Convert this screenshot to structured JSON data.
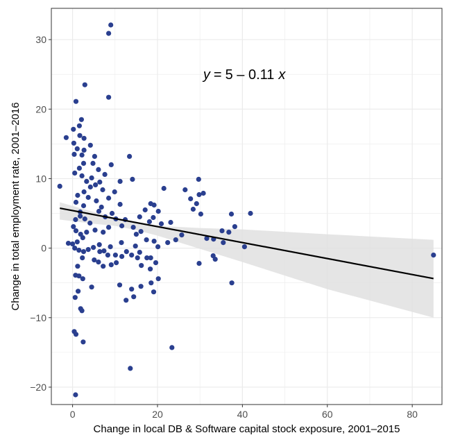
{
  "chart_data": {
    "type": "scatter",
    "xlabel": "Change in local DB & Software capital stock exposure, 2001–2015",
    "ylabel": "Change in total employment rate, 2001–2016",
    "xlim": [
      -5,
      87
    ],
    "ylim": [
      -22.5,
      34.5
    ],
    "x_ticks": [
      0,
      20,
      40,
      60,
      80
    ],
    "y_ticks": [
      -20,
      -10,
      0,
      10,
      20,
      30
    ],
    "grid": true,
    "annotation": {
      "y_var": "y",
      "equals": "=",
      "formula": "5 – 0.11",
      "x_var": "x",
      "x": 30,
      "y": 25
    },
    "fit_line": {
      "intercept": 5.4,
      "slope": -0.115,
      "x_range": [
        -3,
        85
      ]
    },
    "confidence_band": [
      {
        "x": -3,
        "upper": 6.6,
        "lower": 4.1
      },
      {
        "x": 5,
        "upper": 5.2,
        "lower": 3.5
      },
      {
        "x": 10,
        "upper": 4.4,
        "lower": 3.2
      },
      {
        "x": 15,
        "upper": 3.7,
        "lower": 2.6
      },
      {
        "x": 20,
        "upper": 3.2,
        "lower": 1.8
      },
      {
        "x": 30,
        "upper": 2.9,
        "lower": -0.1
      },
      {
        "x": 40,
        "upper": 2.7,
        "lower": -2.0
      },
      {
        "x": 60,
        "upper": 2.0,
        "lower": -5.9
      },
      {
        "x": 85,
        "upper": 1.2,
        "lower": -10.0
      }
    ],
    "colors": {
      "points": "#2a3f8f",
      "line": "#000000",
      "band": "#e0e0e0",
      "grid": "#ebebeb",
      "panel_border": "#333333"
    },
    "points": [
      [
        9,
        32.1
      ],
      [
        8.5,
        30.9
      ],
      [
        2.9,
        23.5
      ],
      [
        8.5,
        21.7
      ],
      [
        0.8,
        21.1
      ],
      [
        -3,
        8.9
      ],
      [
        -1.5,
        15.9
      ],
      [
        0.2,
        17.1
      ],
      [
        1.7,
        16.2
      ],
      [
        2.1,
        18.5
      ],
      [
        1.6,
        17.6
      ],
      [
        2.7,
        15.8
      ],
      [
        0.3,
        15.1
      ],
      [
        1.1,
        14.3
      ],
      [
        2.7,
        14.1
      ],
      [
        0.4,
        13.5
      ],
      [
        2.2,
        13.4
      ],
      [
        4.2,
        14.8
      ],
      [
        5.2,
        13.2
      ],
      [
        4.8,
        12.2
      ],
      [
        2.6,
        12.2
      ],
      [
        1.6,
        11.5
      ],
      [
        0.5,
        10.8
      ],
      [
        2.2,
        10.4
      ],
      [
        3.3,
        9.6
      ],
      [
        4.5,
        10.1
      ],
      [
        6.1,
        11.3
      ],
      [
        7.6,
        10.6
      ],
      [
        9.1,
        12.0
      ],
      [
        13.4,
        13.2
      ],
      [
        14.1,
        9.9
      ],
      [
        11.2,
        9.6
      ],
      [
        6.4,
        9.5
      ],
      [
        5.4,
        9.1
      ],
      [
        4.2,
        8.8
      ],
      [
        2.7,
        8.1
      ],
      [
        1.2,
        7.6
      ],
      [
        0.8,
        6.6
      ],
      [
        1.8,
        5.2
      ],
      [
        2.6,
        6.1
      ],
      [
        3.7,
        7.3
      ],
      [
        5.6,
        6.8
      ],
      [
        7.1,
        8.4
      ],
      [
        8.5,
        7.2
      ],
      [
        9.9,
        8.1
      ],
      [
        11.2,
        6.3
      ],
      [
        6.8,
        5.9
      ],
      [
        6.2,
        5.3
      ],
      [
        7.7,
        4.5
      ],
      [
        9.3,
        5.0
      ],
      [
        10.2,
        4.2
      ],
      [
        12.4,
        4.1
      ],
      [
        11.6,
        3.2
      ],
      [
        8.5,
        3.0
      ],
      [
        7.2,
        2.3
      ],
      [
        5.3,
        2.6
      ],
      [
        4.1,
        3.6
      ],
      [
        2.9,
        4.2
      ],
      [
        1.8,
        4.6
      ],
      [
        0.7,
        4.1
      ],
      [
        0.2,
        3.1
      ],
      [
        0.8,
        2.5
      ],
      [
        1.9,
        2.0
      ],
      [
        3.3,
        2.3
      ],
      [
        2.4,
        1.5
      ],
      [
        1.1,
        0.9
      ],
      [
        0,
        0.6
      ],
      [
        -1,
        0.7
      ],
      [
        0.5,
        0
      ],
      [
        1.5,
        -0.3
      ],
      [
        2.6,
        -0.5
      ],
      [
        3.7,
        -0.2
      ],
      [
        4.9,
        0.1
      ],
      [
        6.3,
        0.5
      ],
      [
        7.4,
        -0.4
      ],
      [
        8.9,
        0.2
      ],
      [
        10.1,
        -1.0
      ],
      [
        11.5,
        0.8
      ],
      [
        12.7,
        -0.5
      ],
      [
        13.9,
        -1.0
      ],
      [
        14.8,
        0.3
      ],
      [
        15.3,
        -1.4
      ],
      [
        16.2,
        -2.5
      ],
      [
        17.5,
        -1.4
      ],
      [
        18.3,
        -3.0
      ],
      [
        19.6,
        -2.1
      ],
      [
        20.1,
        0.2
      ],
      [
        19.2,
        1.0
      ],
      [
        17.4,
        1.2
      ],
      [
        16.1,
        2.4
      ],
      [
        15.0,
        2.0
      ],
      [
        14.3,
        3.0
      ],
      [
        15.8,
        4.5
      ],
      [
        17.1,
        5.5
      ],
      [
        18.4,
        6.4
      ],
      [
        19.2,
        6.2
      ],
      [
        20.2,
        5.3
      ],
      [
        19.0,
        4.4
      ],
      [
        18.1,
        3.8
      ],
      [
        20.9,
        3.5
      ],
      [
        21.5,
        8.6
      ],
      [
        22.4,
        0.8
      ],
      [
        23.1,
        3.7
      ],
      [
        24.3,
        1.2
      ],
      [
        25.7,
        1.9
      ],
      [
        26.5,
        8.4
      ],
      [
        27.8,
        7.1
      ],
      [
        28.4,
        5.6
      ],
      [
        29.2,
        6.4
      ],
      [
        29.8,
        7.7
      ],
      [
        30.8,
        7.9
      ],
      [
        29.7,
        9.9
      ],
      [
        30.2,
        4.9
      ],
      [
        31.6,
        1.4
      ],
      [
        33.2,
        1.3
      ],
      [
        33.6,
        -1.6
      ],
      [
        35.2,
        2.5
      ],
      [
        35.5,
        0.8
      ],
      [
        36.8,
        2.3
      ],
      [
        37.4,
        4.9
      ],
      [
        38.2,
        3.1
      ],
      [
        40.5,
        0.2
      ],
      [
        41.9,
        5.0
      ],
      [
        37.5,
        -5.0
      ],
      [
        29.8,
        -2.2
      ],
      [
        33.1,
        -1.1
      ],
      [
        23.4,
        -14.3
      ],
      [
        13.6,
        -17.3
      ],
      [
        0.7,
        -21.1
      ],
      [
        0.4,
        -12.0
      ],
      [
        0.8,
        -12.4
      ],
      [
        2.5,
        -13.5
      ],
      [
        1.9,
        -8.7
      ],
      [
        2.2,
        -9.0
      ],
      [
        0.6,
        -7.1
      ],
      [
        1.3,
        -6.2
      ],
      [
        2.4,
        -4.4
      ],
      [
        1.5,
        -4.0
      ],
      [
        0.7,
        -3.9
      ],
      [
        1.2,
        -2.6
      ],
      [
        2.3,
        -1.4
      ],
      [
        4.5,
        -5.6
      ],
      [
        7.2,
        -2.6
      ],
      [
        6.1,
        -2.0
      ],
      [
        5.1,
        -1.7
      ],
      [
        9.1,
        -2.4
      ],
      [
        11.1,
        -5.3
      ],
      [
        12.6,
        -7.5
      ],
      [
        13.9,
        -5.9
      ],
      [
        14.4,
        -7.0
      ],
      [
        16.1,
        -5.5
      ],
      [
        18.5,
        -5.0
      ],
      [
        19.1,
        -6.3
      ],
      [
        20.2,
        -4.4
      ],
      [
        18.4,
        -1.4
      ],
      [
        15.8,
        -0.6
      ],
      [
        11.6,
        -1.2
      ],
      [
        10.3,
        -2.1
      ],
      [
        8.3,
        -1.0
      ],
      [
        6.4,
        -0.5
      ],
      [
        85,
        -1.0
      ]
    ]
  }
}
